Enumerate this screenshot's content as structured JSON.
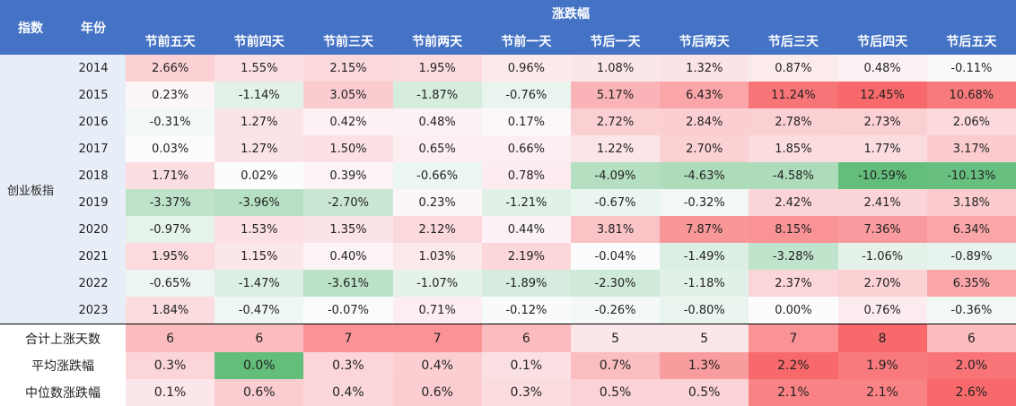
{
  "header": {
    "index_label": "指数",
    "year_label": "年份",
    "group_label": "涨跌幅",
    "columns": [
      "节前五天",
      "节前四天",
      "节前三天",
      "节前两天",
      "节前一天",
      "节后一天",
      "节后两天",
      "节后三天",
      "节后四天",
      "节后五天"
    ]
  },
  "index_name": "创业板指",
  "rows": [
    {
      "year": "2014",
      "values": [
        "2.66%",
        "1.55%",
        "2.15%",
        "1.95%",
        "0.96%",
        "1.08%",
        "1.32%",
        "0.87%",
        "0.48%",
        "-0.11%"
      ]
    },
    {
      "year": "2015",
      "values": [
        "0.23%",
        "-1.14%",
        "3.05%",
        "-1.87%",
        "-0.76%",
        "5.17%",
        "6.43%",
        "11.24%",
        "12.45%",
        "10.68%"
      ]
    },
    {
      "year": "2016",
      "values": [
        "-0.31%",
        "1.27%",
        "0.42%",
        "0.48%",
        "0.17%",
        "2.72%",
        "2.84%",
        "2.78%",
        "2.73%",
        "2.06%"
      ]
    },
    {
      "year": "2017",
      "values": [
        "0.03%",
        "1.27%",
        "1.50%",
        "0.65%",
        "0.66%",
        "1.22%",
        "2.70%",
        "1.85%",
        "1.77%",
        "3.17%"
      ]
    },
    {
      "year": "2018",
      "values": [
        "1.71%",
        "0.02%",
        "0.39%",
        "-0.66%",
        "0.78%",
        "-4.09%",
        "-4.63%",
        "-4.58%",
        "-10.59%",
        "-10.13%"
      ]
    },
    {
      "year": "2019",
      "values": [
        "-3.37%",
        "-3.96%",
        "-2.70%",
        "0.23%",
        "-1.21%",
        "-0.67%",
        "-0.32%",
        "2.42%",
        "2.41%",
        "3.18%"
      ]
    },
    {
      "year": "2020",
      "values": [
        "-0.97%",
        "1.53%",
        "1.35%",
        "2.12%",
        "0.44%",
        "3.81%",
        "7.87%",
        "8.15%",
        "7.36%",
        "6.34%"
      ]
    },
    {
      "year": "2021",
      "values": [
        "1.95%",
        "1.15%",
        "0.40%",
        "1.03%",
        "2.19%",
        "-0.04%",
        "-1.49%",
        "-3.28%",
        "-1.06%",
        "-0.89%"
      ]
    },
    {
      "year": "2022",
      "values": [
        "-0.65%",
        "-1.47%",
        "-3.61%",
        "-1.07%",
        "-1.89%",
        "-2.30%",
        "-1.18%",
        "2.37%",
        "2.70%",
        "6.35%"
      ]
    },
    {
      "year": "2023",
      "values": [
        "1.84%",
        "-0.47%",
        "-0.07%",
        "0.71%",
        "-0.12%",
        "-0.26%",
        "-0.80%",
        "0.00%",
        "0.76%",
        "-0.36%"
      ]
    }
  ],
  "summary": [
    {
      "label": "合计上涨天数",
      "values": [
        "6",
        "6",
        "7",
        "7",
        "6",
        "5",
        "5",
        "7",
        "8",
        "6"
      ]
    },
    {
      "label": "平均涨跌幅",
      "values": [
        "0.3%",
        "0.0%",
        "0.3%",
        "0.4%",
        "0.1%",
        "0.7%",
        "1.3%",
        "2.2%",
        "1.9%",
        "2.0%"
      ]
    },
    {
      "label": "中位数涨跌幅",
      "values": [
        "0.1%",
        "0.6%",
        "0.4%",
        "0.6%",
        "0.3%",
        "0.5%",
        "0.5%",
        "2.1%",
        "2.1%",
        "2.6%"
      ]
    }
  ],
  "colors": {
    "header_bg": "#4472C4",
    "index_bg": "#E8EEF7",
    "positive": "#F8696B",
    "negative": "#63BE7B"
  }
}
